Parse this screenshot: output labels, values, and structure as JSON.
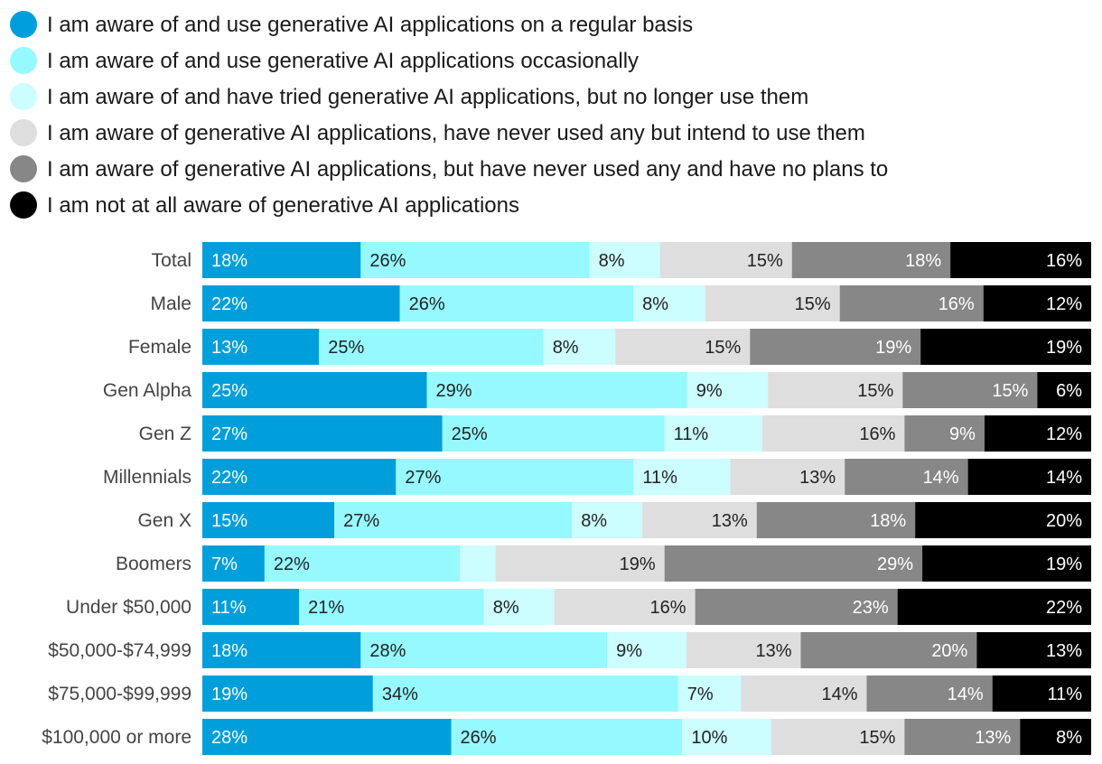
{
  "chart_data": {
    "type": "bar",
    "orientation": "horizontal",
    "stacked": true,
    "normalized": true,
    "title": "",
    "xlabel": "",
    "ylabel": "",
    "xlim": [
      0,
      100
    ],
    "legend_position": "top",
    "categories": [
      "Total",
      "Male",
      "Female",
      "Gen Alpha",
      "Gen Z",
      "Millennials",
      "Gen X",
      "Boomers",
      "Under $50,000",
      "$50,000-$74,999",
      "$75,000-$99,999",
      "$100,000 or more"
    ],
    "series": [
      {
        "name": "I am aware of and use generative AI applications on a regular basis",
        "color": "#009fdb",
        "label_color": "#ffffff",
        "values": [
          18,
          22,
          13,
          25,
          27,
          22,
          15,
          7,
          11,
          18,
          19,
          28
        ],
        "labels": [
          "18%",
          "22%",
          "13%",
          "25%",
          "27%",
          "22%",
          "15%",
          "7%",
          "11%",
          "18%",
          "19%",
          "28%"
        ]
      },
      {
        "name": "I am aware of and use generative AI applications occasionally",
        "color": "#96f9ff",
        "label_color": "#222222",
        "values": [
          26,
          26,
          25,
          29,
          25,
          27,
          27,
          22,
          21,
          28,
          34,
          26
        ],
        "labels": [
          "26%",
          "26%",
          "25%",
          "29%",
          "25%",
          "27%",
          "27%",
          "22%",
          "21%",
          "28%",
          "34%",
          "26%"
        ]
      },
      {
        "name": "I am aware of and have tried generative AI applications, but no longer use them",
        "color": "#ccfdff",
        "label_color": "#222222",
        "values": [
          8,
          8,
          8,
          9,
          11,
          11,
          8,
          4,
          8,
          9,
          7,
          10
        ],
        "labels": [
          "8%",
          "8%",
          "8%",
          "9%",
          "11%",
          "11%",
          "8%",
          "",
          "8%",
          "9%",
          "7%",
          "10%"
        ]
      },
      {
        "name": "I am aware of generative AI applications, have never used any but intend to use them",
        "color": "#dedede",
        "label_color": "#222222",
        "values": [
          15,
          15,
          15,
          15,
          16,
          13,
          13,
          19,
          16,
          13,
          14,
          15
        ],
        "labels": [
          "15%",
          "15%",
          "15%",
          "15%",
          "16%",
          "13%",
          "13%",
          "19%",
          "16%",
          "13%",
          "14%",
          "15%"
        ]
      },
      {
        "name": "I am aware of generative AI applications, but have never used any and have no plans to",
        "color": "#878787",
        "label_color": "#ffffff",
        "values": [
          18,
          16,
          19,
          15,
          9,
          14,
          18,
          29,
          23,
          20,
          14,
          13
        ],
        "labels": [
          "18%",
          "16%",
          "19%",
          "15%",
          "9%",
          "14%",
          "18%",
          "29%",
          "23%",
          "20%",
          "14%",
          "13%"
        ]
      },
      {
        "name": "I am not at all aware of generative AI applications",
        "color": "#000000",
        "label_color": "#ffffff",
        "values": [
          16,
          12,
          19,
          6,
          12,
          14,
          20,
          19,
          22,
          13,
          11,
          8
        ],
        "labels": [
          "16%",
          "12%",
          "19%",
          "6%",
          "12%",
          "14%",
          "20%",
          "19%",
          "22%",
          "13%",
          "11%",
          "8%"
        ]
      }
    ]
  }
}
